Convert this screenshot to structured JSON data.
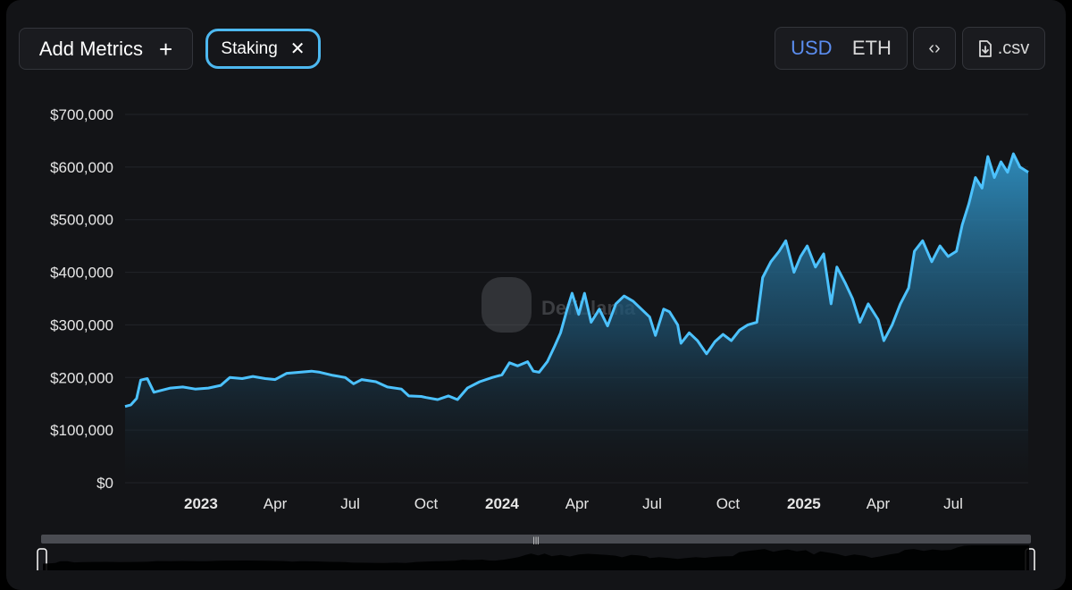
{
  "toolbar": {
    "add_metrics_label": "Add Metrics",
    "add_metrics_icon": "plus-icon",
    "chip_label": "Staking",
    "chip_icon": "close-icon",
    "currency_options": [
      "USD",
      "ETH"
    ],
    "currency_selected": "USD",
    "embed_icon": "code-brackets-icon",
    "csv_label": ".csv",
    "csv_icon": "download-file-icon"
  },
  "watermark": "DefiLlama",
  "colors": {
    "line": "#4cc2ff",
    "accent_selected": "#5b8def",
    "chip_border": "#4db8f0",
    "background": "#131417"
  },
  "chart_data": {
    "type": "area",
    "title": "",
    "xlabel": "",
    "ylabel": "",
    "x_ticks": [
      {
        "label": "2023",
        "date": "2023-01-01",
        "bold": true
      },
      {
        "label": "Apr",
        "date": "2023-04-01",
        "bold": false
      },
      {
        "label": "Jul",
        "date": "2023-07-01",
        "bold": false
      },
      {
        "label": "Oct",
        "date": "2023-10-01",
        "bold": false
      },
      {
        "label": "2024",
        "date": "2024-01-01",
        "bold": true
      },
      {
        "label": "Apr",
        "date": "2024-04-01",
        "bold": false
      },
      {
        "label": "Jul",
        "date": "2024-07-01",
        "bold": false
      },
      {
        "label": "Oct",
        "date": "2024-10-01",
        "bold": false
      },
      {
        "label": "2025",
        "date": "2025-01-01",
        "bold": true
      },
      {
        "label": "Apr",
        "date": "2025-04-01",
        "bold": false
      },
      {
        "label": "Jul",
        "date": "2025-07-01",
        "bold": false
      }
    ],
    "y_ticks": [
      "$0",
      "$100,000",
      "$200,000",
      "$300,000",
      "$400,000",
      "$500,000",
      "$600,000",
      "$700,000"
    ],
    "ylim": [
      0,
      700000
    ],
    "xlim": [
      "2022-10-01",
      "2025-09-30"
    ],
    "grid": true,
    "series": [
      {
        "name": "Staking",
        "points": [
          [
            "2022-10-01",
            145000
          ],
          [
            "2022-10-08",
            148000
          ],
          [
            "2022-10-15",
            160000
          ],
          [
            "2022-10-20",
            195000
          ],
          [
            "2022-10-28",
            198000
          ],
          [
            "2022-11-05",
            172000
          ],
          [
            "2022-11-15",
            176000
          ],
          [
            "2022-11-25",
            180000
          ],
          [
            "2022-12-10",
            182000
          ],
          [
            "2022-12-25",
            178000
          ],
          [
            "2023-01-10",
            180000
          ],
          [
            "2023-01-25",
            185000
          ],
          [
            "2023-02-05",
            200000
          ],
          [
            "2023-02-20",
            198000
          ],
          [
            "2023-03-05",
            202000
          ],
          [
            "2023-03-20",
            198000
          ],
          [
            "2023-04-01",
            196000
          ],
          [
            "2023-04-15",
            208000
          ],
          [
            "2023-05-01",
            210000
          ],
          [
            "2023-05-15",
            212000
          ],
          [
            "2023-05-25",
            210000
          ],
          [
            "2023-06-10",
            204000
          ],
          [
            "2023-06-25",
            200000
          ],
          [
            "2023-07-05",
            188000
          ],
          [
            "2023-07-15",
            196000
          ],
          [
            "2023-08-01",
            192000
          ],
          [
            "2023-08-15",
            182000
          ],
          [
            "2023-09-01",
            178000
          ],
          [
            "2023-09-10",
            165000
          ],
          [
            "2023-09-25",
            164000
          ],
          [
            "2023-10-01",
            162000
          ],
          [
            "2023-10-15",
            158000
          ],
          [
            "2023-10-28",
            165000
          ],
          [
            "2023-11-08",
            158000
          ],
          [
            "2023-11-20",
            180000
          ],
          [
            "2023-12-05",
            192000
          ],
          [
            "2023-12-20",
            200000
          ],
          [
            "2024-01-01",
            205000
          ],
          [
            "2024-01-10",
            228000
          ],
          [
            "2024-01-20",
            222000
          ],
          [
            "2024-02-01",
            230000
          ],
          [
            "2024-02-08",
            212000
          ],
          [
            "2024-02-15",
            210000
          ],
          [
            "2024-02-25",
            230000
          ],
          [
            "2024-03-05",
            260000
          ],
          [
            "2024-03-12",
            285000
          ],
          [
            "2024-03-20",
            330000
          ],
          [
            "2024-03-26",
            360000
          ],
          [
            "2024-04-03",
            320000
          ],
          [
            "2024-04-10",
            360000
          ],
          [
            "2024-04-18",
            305000
          ],
          [
            "2024-04-28",
            330000
          ],
          [
            "2024-05-08",
            298000
          ],
          [
            "2024-05-18",
            340000
          ],
          [
            "2024-05-28",
            355000
          ],
          [
            "2024-06-08",
            345000
          ],
          [
            "2024-06-18",
            330000
          ],
          [
            "2024-06-28",
            315000
          ],
          [
            "2024-07-05",
            280000
          ],
          [
            "2024-07-15",
            330000
          ],
          [
            "2024-07-22",
            325000
          ],
          [
            "2024-08-01",
            300000
          ],
          [
            "2024-08-05",
            265000
          ],
          [
            "2024-08-15",
            285000
          ],
          [
            "2024-08-25",
            270000
          ],
          [
            "2024-09-05",
            245000
          ],
          [
            "2024-09-15",
            268000
          ],
          [
            "2024-09-25",
            282000
          ],
          [
            "2024-10-05",
            270000
          ],
          [
            "2024-10-15",
            290000
          ],
          [
            "2024-10-25",
            300000
          ],
          [
            "2024-11-05",
            305000
          ],
          [
            "2024-11-12",
            390000
          ],
          [
            "2024-11-22",
            420000
          ],
          [
            "2024-12-02",
            440000
          ],
          [
            "2024-12-10",
            460000
          ],
          [
            "2024-12-20",
            400000
          ],
          [
            "2024-12-28",
            430000
          ],
          [
            "2025-01-05",
            450000
          ],
          [
            "2025-01-15",
            410000
          ],
          [
            "2025-01-25",
            435000
          ],
          [
            "2025-02-03",
            340000
          ],
          [
            "2025-02-10",
            410000
          ],
          [
            "2025-02-20",
            380000
          ],
          [
            "2025-03-01",
            350000
          ],
          [
            "2025-03-10",
            305000
          ],
          [
            "2025-03-20",
            340000
          ],
          [
            "2025-04-01",
            310000
          ],
          [
            "2025-04-08",
            270000
          ],
          [
            "2025-04-18",
            300000
          ],
          [
            "2025-04-28",
            340000
          ],
          [
            "2025-05-08",
            370000
          ],
          [
            "2025-05-15",
            440000
          ],
          [
            "2025-05-25",
            460000
          ],
          [
            "2025-06-05",
            420000
          ],
          [
            "2025-06-15",
            450000
          ],
          [
            "2025-06-25",
            430000
          ],
          [
            "2025-07-05",
            440000
          ],
          [
            "2025-07-12",
            490000
          ],
          [
            "2025-07-20",
            530000
          ],
          [
            "2025-07-28",
            580000
          ],
          [
            "2025-08-05",
            560000
          ],
          [
            "2025-08-12",
            620000
          ],
          [
            "2025-08-20",
            580000
          ],
          [
            "2025-08-28",
            610000
          ],
          [
            "2025-09-05",
            590000
          ],
          [
            "2025-09-12",
            625000
          ],
          [
            "2025-09-20",
            600000
          ],
          [
            "2025-09-30",
            590000
          ]
        ]
      }
    ]
  }
}
